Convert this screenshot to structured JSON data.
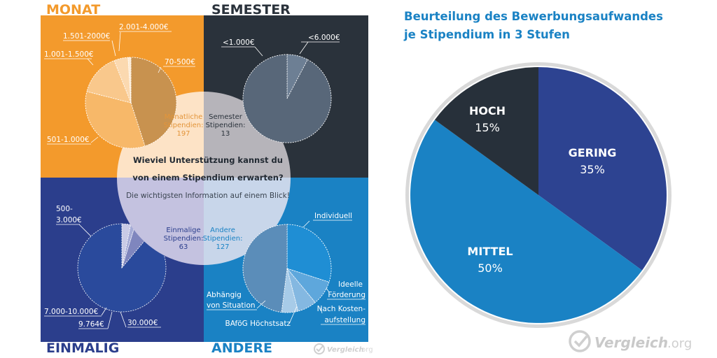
{
  "infographic": {
    "center_question_line1": "Wieviel Unterstützung kannst du",
    "center_question_line2": "von einem Stipendium erwarten?",
    "center_subtitle": "Die wichtigsten Information auf einem Blick!",
    "watermark_brand": "Vergleich",
    "watermark_tld": ".org",
    "colors": {
      "monat_bg": "#f39a2c",
      "semester_bg": "#2a323b",
      "einmalig_bg": "#2b3e8c",
      "andere_bg": "#1a82c4",
      "title_orange": "#f39a2c",
      "title_dark": "#2a323b",
      "title_navy": "#2b3e8c",
      "title_blue": "#1a82c4"
    }
  },
  "chart_data": [
    {
      "type": "pie",
      "title": "MONAT",
      "center_label": [
        "Monatliche",
        "Stipendien:",
        "197"
      ],
      "labels": [
        "70-500€",
        "501-1.000€",
        "1.001-1.500€",
        "1.501-2000€",
        "2.001-4.000€"
      ],
      "values": [
        45,
        34,
        15,
        5,
        1
      ],
      "colors": [
        "#c8924f",
        "#f7b869",
        "#f9c88c",
        "#fbd9b0",
        "#fdebd4"
      ]
    },
    {
      "type": "pie",
      "title": "SEMESTER",
      "center_label": [
        "Semester",
        "Stipendien:",
        "13"
      ],
      "labels": [
        "<6.000€",
        "<1.000€"
      ],
      "values": [
        7.7,
        92.3
      ],
      "colors": [
        "#6d7f94",
        "#586779"
      ]
    },
    {
      "type": "pie",
      "title": "EINMALIG",
      "center_label": [
        "Einmalige",
        "Stipendien:",
        "63"
      ],
      "labels": [
        "500-3.000€",
        "7.000-10.000€",
        "9.764€",
        "30.000€"
      ],
      "values": [
        88.9,
        6.3,
        1.6,
        3.2
      ],
      "colors": [
        "#2a4a9c",
        "#7f86be",
        "#a6acd6",
        "#c9cbe6"
      ]
    },
    {
      "type": "pie",
      "title": "ANDERE",
      "center_label": [
        "Andere",
        "Stipendien:",
        "127"
      ],
      "labels": [
        "Individuell",
        "Ideelle Förderung",
        "Nach Kosten-aufstellung",
        "BAföG Höchstsatz",
        "Abhängig von Situation"
      ],
      "values": [
        30,
        9,
        7,
        6,
        48
      ],
      "colors": [
        "#1f8ed4",
        "#5ea7dc",
        "#84b8e1",
        "#a7cbe8",
        "#5b8db9"
      ]
    },
    {
      "type": "pie",
      "title": "Beurteilung des Bewerbungsaufwandes je Stipendium in 3 Stufen",
      "title_line1": "Beurteilung des Bewerbungsaufwandes",
      "title_line2": "je Stipendium in 3 Stufen",
      "labels": [
        "GERING",
        "MITTEL",
        "HOCH"
      ],
      "values": [
        35,
        50,
        15
      ],
      "value_labels": [
        "35%",
        "50%",
        "15%"
      ],
      "colors": [
        "#2d4391",
        "#1a82c4",
        "#27303a"
      ]
    }
  ]
}
